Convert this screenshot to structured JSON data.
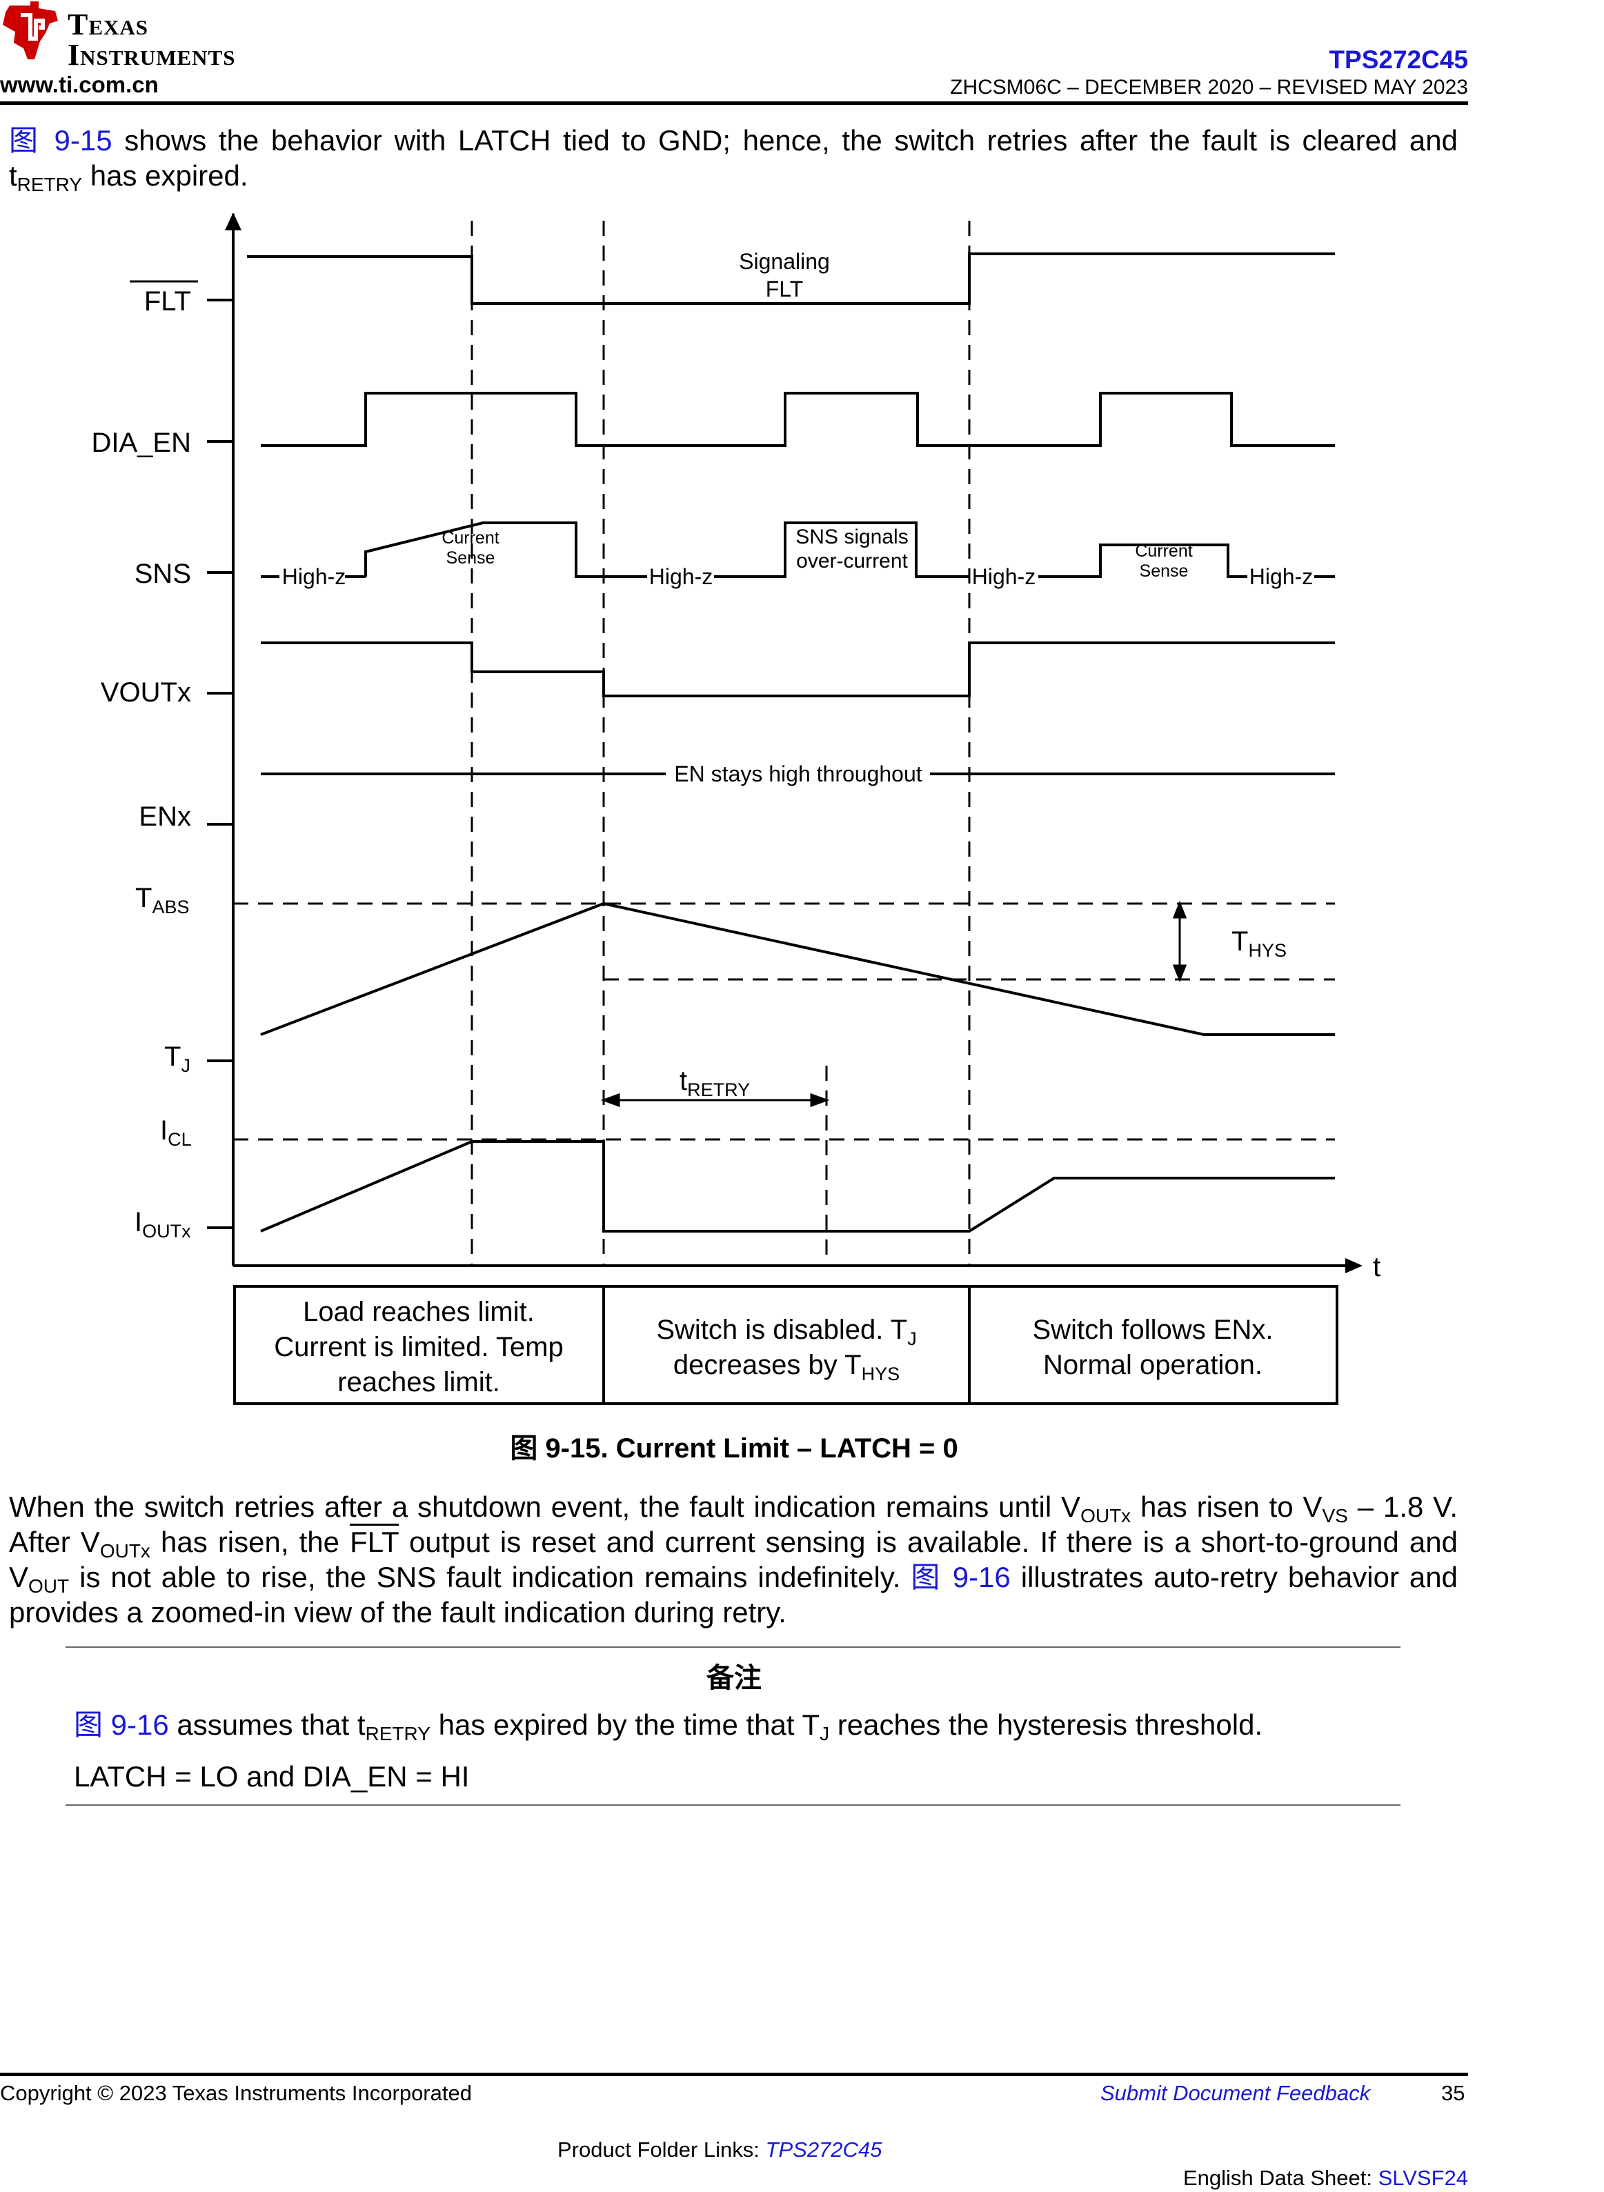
{
  "header": {
    "logo_line1": "Texas",
    "logo_line2": "Instruments",
    "website": "www.ti.com.cn",
    "part_number": "TPS272C45",
    "doc_id": "ZHCSM06C – DECEMBER 2020 – REVISED MAY 2023"
  },
  "intro": {
    "fig_ref": "图  9-15",
    "text_a": " shows the behavior with LATCH tied to GND; hence, the switch retries after the fault is cleared and",
    "t": "t",
    "t_sub": "RETRY",
    "text_b": " has expired."
  },
  "diagram": {
    "signals": {
      "flt": "FLT",
      "dia_en": "DIA_EN",
      "sns": "SNS",
      "voutx": "VOUTx",
      "enx": "ENx",
      "tabs_main": "T",
      "tabs_sub": "ABS",
      "tj_main": "T",
      "tj_sub": "J",
      "icl_main": "I",
      "icl_sub": "CL",
      "ioutx_main": "I",
      "ioutx_sub": "OUTx"
    },
    "annotations": {
      "signaling_1": "Signaling",
      "signaling_2": "FLT",
      "high_z": "High-z",
      "current": "Current",
      "sense": "Sense",
      "sns_signals": "SNS signals",
      "over_current": "over-current",
      "en_stays": "EN stays high throughout",
      "thys_main": "T",
      "thys_sub": "HYS",
      "tretry_main": "t",
      "tretry_sub": "RETRY",
      "t_axis": "t"
    },
    "boxes": {
      "b1_l1": "Load reaches limit.",
      "b1_l2": "Current is limited.  Temp",
      "b1_l3": "reaches limit.",
      "b2_l1": "Switch is disabled.  T",
      "b2_l1_sub": "J",
      "b2_l2": "decreases by T",
      "b2_l2_sub": "HYS",
      "b3_l1": "Switch follows ENx.",
      "b3_l2": "Normal operation."
    },
    "caption": "图 9-15. Current Limit – LATCH = 0"
  },
  "para2": {
    "l1_a": "When the switch retries after a shutdown event, the fault indication remains until V",
    "l1_sub1": "OUTx",
    "l1_b": " has risen to V",
    "l1_sub2": "VS",
    "l1_c": " – 1.8 V.",
    "l2_a": "After V",
    "l2_sub": "OUTx",
    "l2_b": " has risen, the ",
    "l2_flt": "FLT",
    "l2_c": " output is reset and current sensing is available. If there is a short-to-ground and",
    "l3_a": "V",
    "l3_sub": "OUT",
    "l3_b": " is not able to rise, the SNS fault indication remains indefinitely. ",
    "l3_ref": "图  9-16",
    "l3_c": " illustrates auto-retry behavior and",
    "l4": "provides a zoomed-in view of the fault indication during retry."
  },
  "note": {
    "title": "备注",
    "l1_ref": "图  9-16",
    "l1_a": " assumes that t",
    "l1_sub1": "RETRY",
    "l1_b": " has expired by the time that T",
    "l1_sub2": "J",
    "l1_c": " reaches the hysteresis threshold.",
    "l2": "LATCH = LO and DIA_EN = HI"
  },
  "footer": {
    "copyright": "Copyright © 2023 Texas Instruments Incorporated",
    "feedback": "Submit Document Feedback",
    "page": "35",
    "folder_label": "Product Folder Links: ",
    "folder_link": "TPS272C45",
    "sheet_label": "English Data Sheet: ",
    "sheet_link": "SLVSF24"
  },
  "colors": {
    "link": "#1a18d6",
    "logo_red": "#cc0000"
  }
}
